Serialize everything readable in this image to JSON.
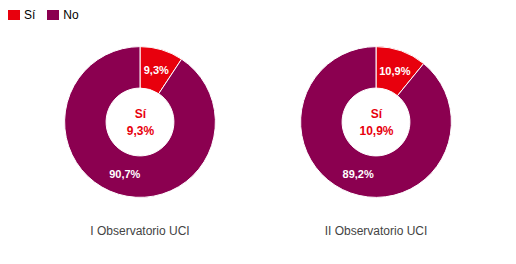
{
  "chart_data": [
    {
      "type": "pie",
      "x_label": "I Observatorio UCI",
      "categories": [
        "Sí",
        "No"
      ],
      "values": [
        9.3,
        90.7
      ],
      "value_labels": [
        "9,3%",
        "90,7%"
      ],
      "colors": [
        "#e8000d",
        "#8b0050"
      ],
      "data_labels": true,
      "legend": "upper left",
      "annotations": [
        {
          "text": "Sí",
          "color": "#e8000d"
        },
        {
          "text": "9,3%",
          "color": "#e8000d"
        }
      ]
    },
    {
      "type": "pie",
      "x_label": "II Observatorio UCI",
      "categories": [
        "Sí",
        "No"
      ],
      "values": [
        10.9,
        89.2
      ],
      "value_labels": [
        "10,9%",
        "89,2%"
      ],
      "colors": [
        "#e8000d",
        "#8b0050"
      ],
      "data_labels": true,
      "annotations": [
        {
          "text": "Sí",
          "color": "#e8000d"
        },
        {
          "text": "10,9%",
          "color": "#e8000d"
        }
      ]
    }
  ]
}
